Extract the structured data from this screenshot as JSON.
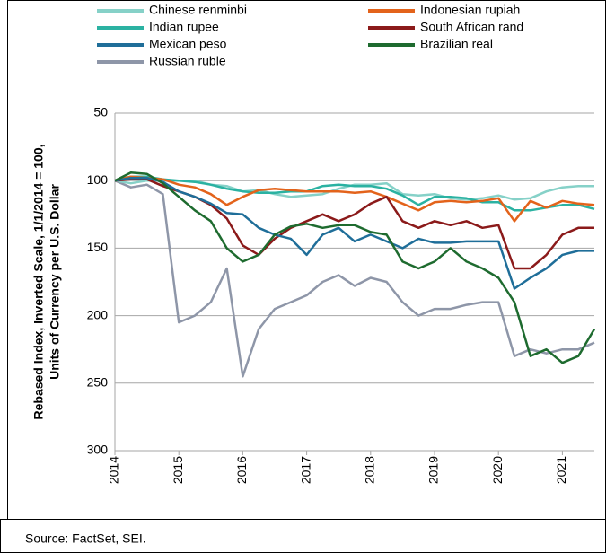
{
  "chart_data": {
    "type": "line",
    "y_label": [
      "Rebased Index, Inverted Scale, 1/1/2014 = 100,",
      "Units of Currency per U.S. Dollar"
    ],
    "source": "Source: FactSet, SEI.",
    "x": [
      2014,
      2014.25,
      2014.5,
      2014.75,
      2015,
      2015.25,
      2015.5,
      2015.75,
      2016,
      2016.25,
      2016.5,
      2016.75,
      2017,
      2017.25,
      2017.5,
      2017.75,
      2018,
      2018.25,
      2018.5,
      2018.75,
      2019,
      2019.25,
      2019.5,
      2019.75,
      2020,
      2020.25,
      2020.5,
      2020.75,
      2021,
      2021.25,
      2021.5
    ],
    "xlim": [
      2014,
      2021.5
    ],
    "xticks": [
      2014,
      2015,
      2016,
      2017,
      2018,
      2019,
      2020,
      2021
    ],
    "ylim": [
      50,
      300
    ],
    "yticks": [
      50,
      100,
      150,
      200,
      250,
      300
    ],
    "invert_y": true,
    "grid": true,
    "series": [
      {
        "name": "Chinese renminbi",
        "color": "#86d1c8",
        "values": [
          100,
          102,
          100,
          100,
          100,
          100,
          103,
          104,
          108,
          107,
          110,
          112,
          111,
          110,
          106,
          103,
          103,
          102,
          110,
          111,
          110,
          113,
          114,
          113,
          111,
          114,
          113,
          108,
          105,
          104,
          104
        ]
      },
      {
        "name": "Indonesian rupiah",
        "color": "#e3631b",
        "values": [
          100,
          97,
          98,
          99,
          103,
          105,
          110,
          118,
          112,
          107,
          106,
          107,
          108,
          108,
          108,
          109,
          108,
          112,
          117,
          122,
          116,
          115,
          116,
          115,
          113,
          130,
          115,
          120,
          115,
          117,
          118
        ]
      },
      {
        "name": "Indian rupee",
        "color": "#2bb2a2",
        "values": [
          100,
          97,
          97,
          99,
          100,
          101,
          103,
          106,
          108,
          109,
          109,
          108,
          108,
          104,
          103,
          104,
          104,
          106,
          111,
          118,
          112,
          112,
          113,
          116,
          116,
          122,
          122,
          120,
          118,
          118,
          121
        ]
      },
      {
        "name": "South African rand",
        "color": "#8b1a1a",
        "values": [
          100,
          99,
          99,
          104,
          108,
          112,
          118,
          128,
          148,
          155,
          143,
          135,
          130,
          125,
          130,
          125,
          117,
          112,
          130,
          135,
          130,
          133,
          130,
          135,
          133,
          165,
          165,
          155,
          140,
          135,
          135
        ]
      },
      {
        "name": "Mexican peso",
        "color": "#1f6e99",
        "values": [
          100,
          98,
          98,
          101,
          108,
          112,
          117,
          124,
          125,
          135,
          140,
          143,
          155,
          140,
          135,
          145,
          140,
          145,
          150,
          143,
          146,
          146,
          145,
          145,
          145,
          180,
          172,
          165,
          155,
          152,
          152
        ]
      },
      {
        "name": "Brazilian real",
        "color": "#1e6b2f",
        "values": [
          100,
          94,
          95,
          102,
          112,
          122,
          130,
          150,
          160,
          155,
          140,
          134,
          132,
          135,
          133,
          133,
          138,
          140,
          160,
          165,
          160,
          150,
          160,
          165,
          172,
          190,
          230,
          225,
          235,
          230,
          210
        ]
      },
      {
        "name": "Russian ruble",
        "color": "#8e96a8",
        "values": [
          100,
          105,
          103,
          110,
          205,
          200,
          190,
          165,
          245,
          210,
          195,
          190,
          185,
          175,
          170,
          178,
          172,
          175,
          190,
          200,
          195,
          195,
          192,
          190,
          190,
          230,
          225,
          228,
          225,
          225,
          220
        ]
      }
    ]
  }
}
